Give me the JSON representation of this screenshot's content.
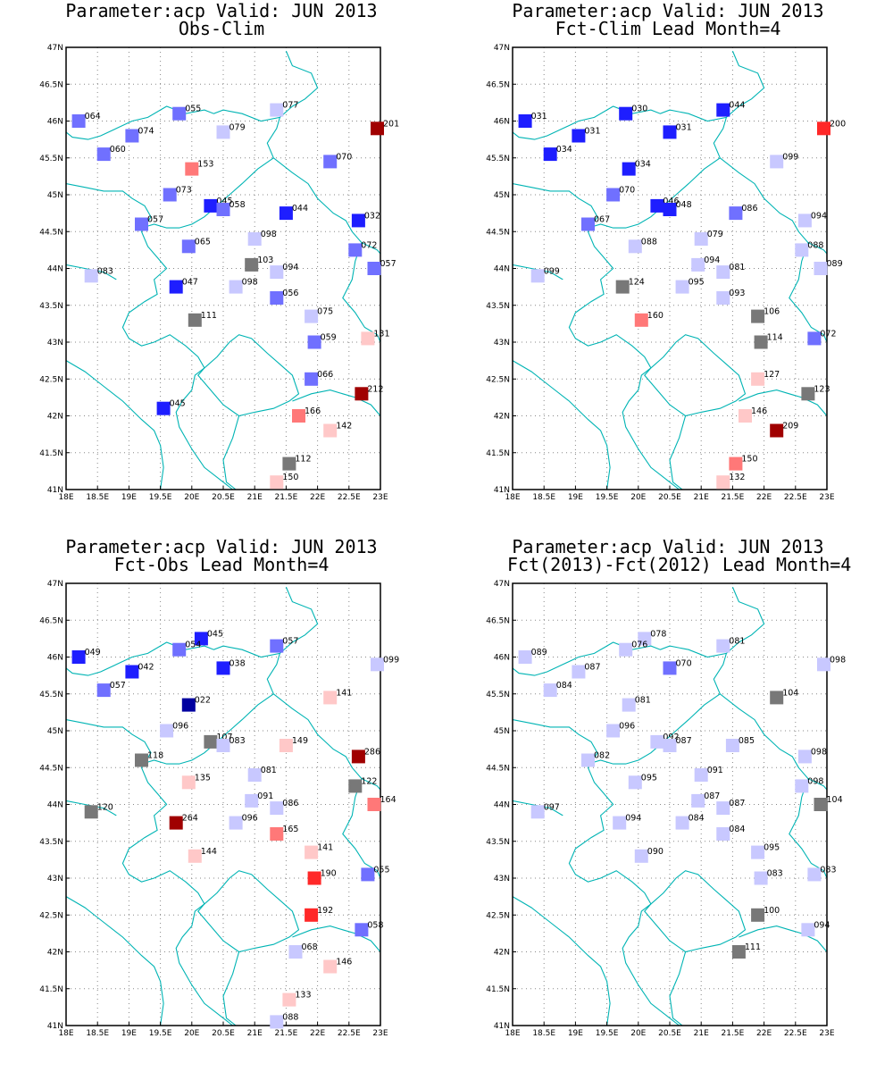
{
  "page": {
    "background": "#ffffff"
  },
  "map": {
    "lon_range": [
      18,
      23
    ],
    "lat_range": [
      41,
      47
    ],
    "x_ticks": [
      "18E",
      "18.5E",
      "19E",
      "19.5E",
      "20E",
      "20.5E",
      "21E",
      "21.5E",
      "22E",
      "22.5E",
      "23E"
    ],
    "y_ticks": [
      "41N",
      "41.5N",
      "42N",
      "42.5N",
      "43N",
      "43.5N",
      "44N",
      "44.5N",
      "45N",
      "45.5N",
      "46N",
      "46.5N",
      "47N"
    ],
    "grid": "dotted",
    "border_color": "#00b4b4"
  },
  "colors": {
    "strong_blue": "#0000a0",
    "blue": "#1e1eff",
    "mid_blue": "#7070ff",
    "light_blue": "#c8c8ff",
    "gray": "#787878",
    "light_red": "#ffc8c8",
    "mid_red": "#ff7878",
    "red": "#ff2828",
    "dark_red": "#a00000"
  },
  "panels": [
    {
      "title_line1": "Parameter:acp Valid: JUN 2013",
      "title_line2": "Obs-Clim",
      "stations": [
        {
          "lon": 18.2,
          "lat": 46.0,
          "label": "064",
          "color": "mid_blue"
        },
        {
          "lon": 19.8,
          "lat": 46.1,
          "label": "055",
          "color": "mid_blue"
        },
        {
          "lon": 21.35,
          "lat": 46.15,
          "label": "077",
          "color": "light_blue"
        },
        {
          "lon": 22.95,
          "lat": 45.9,
          "label": "201",
          "color": "dark_red"
        },
        {
          "lon": 19.05,
          "lat": 45.8,
          "label": "074",
          "color": "mid_blue"
        },
        {
          "lon": 20.5,
          "lat": 45.85,
          "label": "079",
          "color": "light_blue"
        },
        {
          "lon": 18.6,
          "lat": 45.55,
          "label": "060",
          "color": "mid_blue"
        },
        {
          "lon": 20.0,
          "lat": 45.35,
          "label": "153",
          "color": "mid_red"
        },
        {
          "lon": 22.2,
          "lat": 45.45,
          "label": "070",
          "color": "mid_blue"
        },
        {
          "lon": 19.65,
          "lat": 45.0,
          "label": "073",
          "color": "mid_blue"
        },
        {
          "lon": 20.3,
          "lat": 44.85,
          "label": "045",
          "color": "blue"
        },
        {
          "lon": 20.5,
          "lat": 44.8,
          "label": "058",
          "color": "mid_blue"
        },
        {
          "lon": 21.5,
          "lat": 44.75,
          "label": "044",
          "color": "blue"
        },
        {
          "lon": 22.65,
          "lat": 44.65,
          "label": "032",
          "color": "blue"
        },
        {
          "lon": 19.2,
          "lat": 44.6,
          "label": "057",
          "color": "mid_blue"
        },
        {
          "lon": 21.0,
          "lat": 44.4,
          "label": "098",
          "color": "light_blue"
        },
        {
          "lon": 19.95,
          "lat": 44.3,
          "label": "065",
          "color": "mid_blue"
        },
        {
          "lon": 22.6,
          "lat": 44.25,
          "label": "072",
          "color": "mid_blue"
        },
        {
          "lon": 20.95,
          "lat": 44.05,
          "label": "103",
          "color": "gray"
        },
        {
          "lon": 21.35,
          "lat": 43.95,
          "label": "094",
          "color": "light_blue"
        },
        {
          "lon": 22.9,
          "lat": 44.0,
          "label": "057",
          "color": "mid_blue"
        },
        {
          "lon": 18.4,
          "lat": 43.9,
          "label": "083",
          "color": "light_blue"
        },
        {
          "lon": 19.75,
          "lat": 43.75,
          "label": "047",
          "color": "blue"
        },
        {
          "lon": 20.7,
          "lat": 43.75,
          "label": "098",
          "color": "light_blue"
        },
        {
          "lon": 21.35,
          "lat": 43.6,
          "label": "056",
          "color": "mid_blue"
        },
        {
          "lon": 20.05,
          "lat": 43.3,
          "label": "111",
          "color": "gray"
        },
        {
          "lon": 21.9,
          "lat": 43.35,
          "label": "075",
          "color": "light_blue"
        },
        {
          "lon": 22.8,
          "lat": 43.05,
          "label": "131",
          "color": "light_red"
        },
        {
          "lon": 21.95,
          "lat": 43.0,
          "label": "059",
          "color": "mid_blue"
        },
        {
          "lon": 21.9,
          "lat": 42.5,
          "label": "066",
          "color": "mid_blue"
        },
        {
          "lon": 22.7,
          "lat": 42.3,
          "label": "212",
          "color": "dark_red"
        },
        {
          "lon": 19.55,
          "lat": 42.1,
          "label": "045",
          "color": "blue"
        },
        {
          "lon": 21.7,
          "lat": 42.0,
          "label": "166",
          "color": "mid_red"
        },
        {
          "lon": 22.2,
          "lat": 41.8,
          "label": "142",
          "color": "light_red"
        },
        {
          "lon": 21.55,
          "lat": 41.35,
          "label": "112",
          "color": "gray"
        },
        {
          "lon": 21.35,
          "lat": 41.1,
          "label": "150",
          "color": "light_red"
        }
      ]
    },
    {
      "title_line1": "Parameter:acp Valid: JUN 2013",
      "title_line2": "Fct-Clim Lead Month=4",
      "stations": [
        {
          "lon": 18.2,
          "lat": 46.0,
          "label": "031",
          "color": "blue"
        },
        {
          "lon": 19.8,
          "lat": 46.1,
          "label": "030",
          "color": "blue"
        },
        {
          "lon": 21.35,
          "lat": 46.15,
          "label": "044",
          "color": "blue"
        },
        {
          "lon": 22.95,
          "lat": 45.9,
          "label": "200",
          "color": "red"
        },
        {
          "lon": 19.05,
          "lat": 45.8,
          "label": "031",
          "color": "blue"
        },
        {
          "lon": 20.5,
          "lat": 45.85,
          "label": "031",
          "color": "blue"
        },
        {
          "lon": 18.6,
          "lat": 45.55,
          "label": "034",
          "color": "blue"
        },
        {
          "lon": 19.85,
          "lat": 45.35,
          "label": "034",
          "color": "blue"
        },
        {
          "lon": 22.2,
          "lat": 45.45,
          "label": "099",
          "color": "light_blue"
        },
        {
          "lon": 19.6,
          "lat": 45.0,
          "label": "070",
          "color": "mid_blue"
        },
        {
          "lon": 20.3,
          "lat": 44.85,
          "label": "046",
          "color": "blue"
        },
        {
          "lon": 20.5,
          "lat": 44.8,
          "label": "048",
          "color": "blue"
        },
        {
          "lon": 21.55,
          "lat": 44.75,
          "label": "086",
          "color": "mid_blue"
        },
        {
          "lon": 22.65,
          "lat": 44.65,
          "label": "094",
          "color": "light_blue"
        },
        {
          "lon": 19.2,
          "lat": 44.6,
          "label": "067",
          "color": "mid_blue"
        },
        {
          "lon": 21.0,
          "lat": 44.4,
          "label": "079",
          "color": "light_blue"
        },
        {
          "lon": 19.95,
          "lat": 44.3,
          "label": "088",
          "color": "light_blue"
        },
        {
          "lon": 22.6,
          "lat": 44.25,
          "label": "088",
          "color": "light_blue"
        },
        {
          "lon": 20.95,
          "lat": 44.05,
          "label": "094",
          "color": "light_blue"
        },
        {
          "lon": 21.35,
          "lat": 43.95,
          "label": "081",
          "color": "light_blue"
        },
        {
          "lon": 22.9,
          "lat": 44.0,
          "label": "089",
          "color": "light_blue"
        },
        {
          "lon": 18.4,
          "lat": 43.9,
          "label": "099",
          "color": "light_blue"
        },
        {
          "lon": 19.75,
          "lat": 43.75,
          "label": "124",
          "color": "gray"
        },
        {
          "lon": 20.7,
          "lat": 43.75,
          "label": "095",
          "color": "light_blue"
        },
        {
          "lon": 21.35,
          "lat": 43.6,
          "label": "093",
          "color": "light_blue"
        },
        {
          "lon": 20.05,
          "lat": 43.3,
          "label": "160",
          "color": "mid_red"
        },
        {
          "lon": 21.9,
          "lat": 43.35,
          "label": "106",
          "color": "gray"
        },
        {
          "lon": 22.8,
          "lat": 43.05,
          "label": "072",
          "color": "mid_blue"
        },
        {
          "lon": 21.95,
          "lat": 43.0,
          "label": "114",
          "color": "gray"
        },
        {
          "lon": 21.9,
          "lat": 42.5,
          "label": "127",
          "color": "light_red"
        },
        {
          "lon": 22.7,
          "lat": 42.3,
          "label": "123",
          "color": "gray"
        },
        {
          "lon": 21.7,
          "lat": 42.0,
          "label": "146",
          "color": "light_red"
        },
        {
          "lon": 22.2,
          "lat": 41.8,
          "label": "209",
          "color": "dark_red"
        },
        {
          "lon": 21.55,
          "lat": 41.35,
          "label": "150",
          "color": "mid_red"
        },
        {
          "lon": 21.35,
          "lat": 41.1,
          "label": "132",
          "color": "light_red"
        }
      ]
    },
    {
      "title_line1": "Parameter:acp Valid: JUN 2013",
      "title_line2": "Fct-Obs Lead Month=4",
      "stations": [
        {
          "lon": 18.2,
          "lat": 46.0,
          "label": "049",
          "color": "blue"
        },
        {
          "lon": 20.15,
          "lat": 46.25,
          "label": "045",
          "color": "blue"
        },
        {
          "lon": 19.8,
          "lat": 46.1,
          "label": "054",
          "color": "mid_blue"
        },
        {
          "lon": 21.35,
          "lat": 46.15,
          "label": "057",
          "color": "mid_blue"
        },
        {
          "lon": 22.95,
          "lat": 45.9,
          "label": "099",
          "color": "light_blue"
        },
        {
          "lon": 19.05,
          "lat": 45.8,
          "label": "042",
          "color": "blue"
        },
        {
          "lon": 20.5,
          "lat": 45.85,
          "label": "038",
          "color": "blue"
        },
        {
          "lon": 18.6,
          "lat": 45.55,
          "label": "057",
          "color": "mid_blue"
        },
        {
          "lon": 22.2,
          "lat": 45.45,
          "label": "141",
          "color": "light_red"
        },
        {
          "lon": 19.95,
          "lat": 45.35,
          "label": "022",
          "color": "strong_blue"
        },
        {
          "lon": 19.6,
          "lat": 45.0,
          "label": "096",
          "color": "light_blue"
        },
        {
          "lon": 20.3,
          "lat": 44.85,
          "label": "107",
          "color": "gray"
        },
        {
          "lon": 20.5,
          "lat": 44.8,
          "label": "083",
          "color": "light_blue"
        },
        {
          "lon": 21.5,
          "lat": 44.8,
          "label": "149",
          "color": "light_red"
        },
        {
          "lon": 22.65,
          "lat": 44.65,
          "label": "286",
          "color": "dark_red"
        },
        {
          "lon": 19.2,
          "lat": 44.6,
          "label": "118",
          "color": "gray"
        },
        {
          "lon": 21.0,
          "lat": 44.4,
          "label": "081",
          "color": "light_blue"
        },
        {
          "lon": 19.95,
          "lat": 44.3,
          "label": "135",
          "color": "light_red"
        },
        {
          "lon": 22.6,
          "lat": 44.25,
          "label": "122",
          "color": "gray"
        },
        {
          "lon": 20.95,
          "lat": 44.05,
          "label": "091",
          "color": "light_blue"
        },
        {
          "lon": 21.35,
          "lat": 43.95,
          "label": "086",
          "color": "light_blue"
        },
        {
          "lon": 22.9,
          "lat": 44.0,
          "label": "164",
          "color": "mid_red"
        },
        {
          "lon": 18.4,
          "lat": 43.9,
          "label": "120",
          "color": "gray"
        },
        {
          "lon": 19.75,
          "lat": 43.75,
          "label": "264",
          "color": "dark_red"
        },
        {
          "lon": 20.7,
          "lat": 43.75,
          "label": "096",
          "color": "light_blue"
        },
        {
          "lon": 21.35,
          "lat": 43.6,
          "label": "165",
          "color": "mid_red"
        },
        {
          "lon": 20.05,
          "lat": 43.3,
          "label": "144",
          "color": "light_red"
        },
        {
          "lon": 21.9,
          "lat": 43.35,
          "label": "141",
          "color": "light_red"
        },
        {
          "lon": 22.8,
          "lat": 43.05,
          "label": "055",
          "color": "mid_blue"
        },
        {
          "lon": 21.95,
          "lat": 43.0,
          "label": "190",
          "color": "red"
        },
        {
          "lon": 21.9,
          "lat": 42.5,
          "label": "192",
          "color": "red"
        },
        {
          "lon": 22.7,
          "lat": 42.3,
          "label": "058",
          "color": "mid_blue"
        },
        {
          "lon": 21.65,
          "lat": 42.0,
          "label": "068",
          "color": "light_blue"
        },
        {
          "lon": 22.2,
          "lat": 41.8,
          "label": "146",
          "color": "light_red"
        },
        {
          "lon": 21.55,
          "lat": 41.35,
          "label": "133",
          "color": "light_red"
        },
        {
          "lon": 21.35,
          "lat": 41.05,
          "label": "088",
          "color": "light_blue"
        }
      ]
    },
    {
      "title_line1": "Parameter:acp Valid: JUN 2013",
      "title_line2": "Fct(2013)-Fct(2012) Lead Month=4",
      "stations": [
        {
          "lon": 18.2,
          "lat": 46.0,
          "label": "089",
          "color": "light_blue"
        },
        {
          "lon": 20.1,
          "lat": 46.25,
          "label": "078",
          "color": "light_blue"
        },
        {
          "lon": 19.8,
          "lat": 46.1,
          "label": "076",
          "color": "light_blue"
        },
        {
          "lon": 21.35,
          "lat": 46.15,
          "label": "081",
          "color": "light_blue"
        },
        {
          "lon": 22.95,
          "lat": 45.9,
          "label": "098",
          "color": "light_blue"
        },
        {
          "lon": 19.05,
          "lat": 45.8,
          "label": "087",
          "color": "light_blue"
        },
        {
          "lon": 20.5,
          "lat": 45.85,
          "label": "070",
          "color": "mid_blue"
        },
        {
          "lon": 18.6,
          "lat": 45.55,
          "label": "084",
          "color": "light_blue"
        },
        {
          "lon": 22.2,
          "lat": 45.45,
          "label": "104",
          "color": "gray"
        },
        {
          "lon": 19.85,
          "lat": 45.35,
          "label": "081",
          "color": "light_blue"
        },
        {
          "lon": 19.6,
          "lat": 45.0,
          "label": "096",
          "color": "light_blue"
        },
        {
          "lon": 20.3,
          "lat": 44.85,
          "label": "092",
          "color": "light_blue"
        },
        {
          "lon": 20.5,
          "lat": 44.8,
          "label": "087",
          "color": "light_blue"
        },
        {
          "lon": 21.5,
          "lat": 44.8,
          "label": "085",
          "color": "light_blue"
        },
        {
          "lon": 22.65,
          "lat": 44.65,
          "label": "098",
          "color": "light_blue"
        },
        {
          "lon": 19.2,
          "lat": 44.6,
          "label": "082",
          "color": "light_blue"
        },
        {
          "lon": 21.0,
          "lat": 44.4,
          "label": "091",
          "color": "light_blue"
        },
        {
          "lon": 19.95,
          "lat": 44.3,
          "label": "095",
          "color": "light_blue"
        },
        {
          "lon": 22.6,
          "lat": 44.25,
          "label": "098",
          "color": "light_blue"
        },
        {
          "lon": 20.95,
          "lat": 44.05,
          "label": "087",
          "color": "light_blue"
        },
        {
          "lon": 21.35,
          "lat": 43.95,
          "label": "087",
          "color": "light_blue"
        },
        {
          "lon": 22.9,
          "lat": 44.0,
          "label": "104",
          "color": "gray"
        },
        {
          "lon": 18.4,
          "lat": 43.9,
          "label": "097",
          "color": "light_blue"
        },
        {
          "lon": 19.7,
          "lat": 43.75,
          "label": "094",
          "color": "light_blue"
        },
        {
          "lon": 20.7,
          "lat": 43.75,
          "label": "084",
          "color": "light_blue"
        },
        {
          "lon": 21.35,
          "lat": 43.6,
          "label": "084",
          "color": "light_blue"
        },
        {
          "lon": 20.05,
          "lat": 43.3,
          "label": "090",
          "color": "light_blue"
        },
        {
          "lon": 21.9,
          "lat": 43.35,
          "label": "095",
          "color": "light_blue"
        },
        {
          "lon": 22.8,
          "lat": 43.05,
          "label": "083",
          "color": "light_blue"
        },
        {
          "lon": 21.95,
          "lat": 43.0,
          "label": "083",
          "color": "light_blue"
        },
        {
          "lon": 21.9,
          "lat": 42.5,
          "label": "100",
          "color": "gray"
        },
        {
          "lon": 22.7,
          "lat": 42.3,
          "label": "094",
          "color": "light_blue"
        },
        {
          "lon": 21.6,
          "lat": 42.0,
          "label": "111",
          "color": "gray"
        }
      ]
    }
  ]
}
